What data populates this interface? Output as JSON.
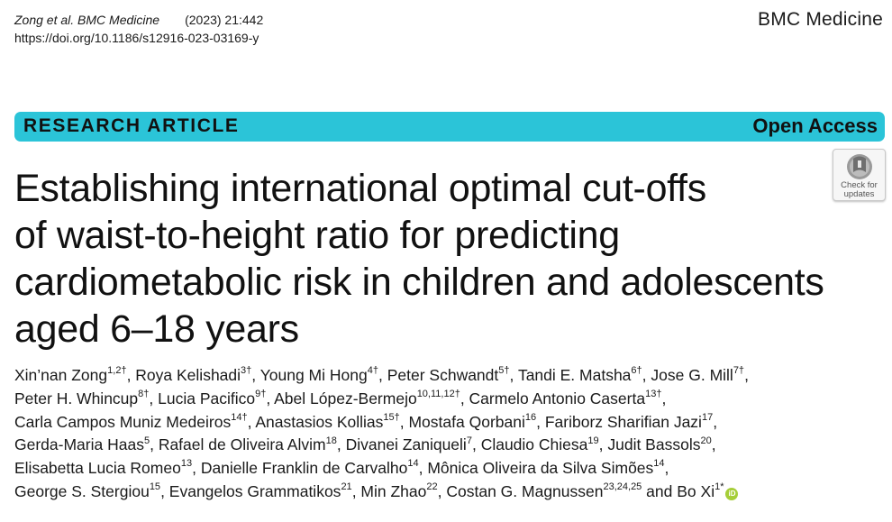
{
  "header": {
    "citation_authors": "Zong et al. BMC Medicine",
    "citation_year": "(2023) 21:442",
    "doi": "https://doi.org/10.1186/s12916-023-03169-y",
    "journal": "BMC Medicine"
  },
  "banner": {
    "article_type": "RESEARCH ARTICLE",
    "access": "Open Access",
    "color": "#2bc4d8"
  },
  "check_updates": {
    "label_line1": "Check for",
    "label_line2": "updates"
  },
  "title_lines": [
    "Establishing international optimal cut-offs",
    "of waist-to-height ratio for predicting",
    "cardiometabolic risk in children and adolescents",
    "aged 6–18 years"
  ],
  "authors": [
    [
      {
        "name": "Xin’nan Zong",
        "sup": "1,2†",
        "sep": ", "
      },
      {
        "name": "Roya Kelishadi",
        "sup": "3†",
        "sep": ", "
      },
      {
        "name": "Young Mi Hong",
        "sup": "4†",
        "sep": ", "
      },
      {
        "name": "Peter Schwandt",
        "sup": "5†",
        "sep": ", "
      },
      {
        "name": "Tandi E. Matsha",
        "sup": "6†",
        "sep": ", "
      },
      {
        "name": "Jose G. Mill",
        "sup": "7†",
        "sep": ","
      }
    ],
    [
      {
        "name": "Peter H. Whincup",
        "sup": "8†",
        "sep": ", "
      },
      {
        "name": "Lucia Pacifico",
        "sup": "9†",
        "sep": ", "
      },
      {
        "name": "Abel López-Bermejo",
        "sup": "10,11,12†",
        "sep": ", "
      },
      {
        "name": "Carmelo Antonio Caserta",
        "sup": "13†",
        "sep": ","
      }
    ],
    [
      {
        "name": "Carla Campos Muniz Medeiros",
        "sup": "14†",
        "sep": ", "
      },
      {
        "name": "Anastasios Kollias",
        "sup": "15†",
        "sep": ", "
      },
      {
        "name": "Mostafa Qorbani",
        "sup": "16",
        "sep": ", "
      },
      {
        "name": "Fariborz Sharifian Jazi",
        "sup": "17",
        "sep": ","
      }
    ],
    [
      {
        "name": "Gerda-Maria Haas",
        "sup": "5",
        "sep": ", "
      },
      {
        "name": "Rafael de Oliveira Alvim",
        "sup": "18",
        "sep": ", "
      },
      {
        "name": "Divanei Zaniqueli",
        "sup": "7",
        "sep": ", "
      },
      {
        "name": "Claudio Chiesa",
        "sup": "19",
        "sep": ", "
      },
      {
        "name": "Judit Bassols",
        "sup": "20",
        "sep": ","
      }
    ],
    [
      {
        "name": "Elisabetta Lucia Romeo",
        "sup": "13",
        "sep": ", "
      },
      {
        "name": "Danielle Franklin de Carvalho",
        "sup": "14",
        "sep": ", "
      },
      {
        "name": "Mônica Oliveira da Silva Simões",
        "sup": "14",
        "sep": ","
      }
    ],
    [
      {
        "name": "George S. Stergiou",
        "sup": "15",
        "sep": ", "
      },
      {
        "name": "Evangelos Grammatikos",
        "sup": "21",
        "sep": ", "
      },
      {
        "name": "Min Zhao",
        "sup": "22",
        "sep": ", "
      },
      {
        "name": "Costan G. Magnussen",
        "sup": "23,24,25",
        "sep": " and "
      },
      {
        "name": "Bo Xi",
        "sup": "1*",
        "sep": ""
      }
    ]
  ],
  "orcid_label": "iD",
  "icons": {
    "orcid": "orcid-icon",
    "check_updates": "check-for-updates-icon"
  }
}
